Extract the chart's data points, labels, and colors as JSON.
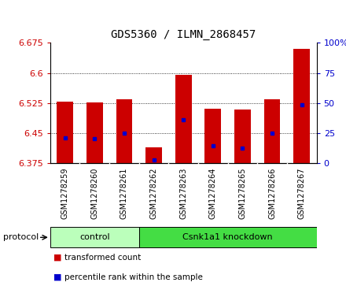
{
  "title": "GDS5360 / ILMN_2868457",
  "samples": [
    "GSM1278259",
    "GSM1278260",
    "GSM1278261",
    "GSM1278262",
    "GSM1278263",
    "GSM1278264",
    "GSM1278265",
    "GSM1278266",
    "GSM1278267"
  ],
  "bar_tops": [
    6.528,
    6.526,
    6.535,
    6.415,
    6.596,
    6.51,
    6.508,
    6.535,
    6.66
  ],
  "bar_bottoms": [
    6.375,
    6.375,
    6.375,
    6.375,
    6.375,
    6.375,
    6.375,
    6.375,
    6.375
  ],
  "blue_dots": [
    6.438,
    6.435,
    6.45,
    6.383,
    6.483,
    6.418,
    6.413,
    6.45,
    6.52
  ],
  "ylim": [
    6.375,
    6.675
  ],
  "yticks": [
    6.375,
    6.45,
    6.525,
    6.6,
    6.675
  ],
  "ytick_labels": [
    "6.375",
    "6.45",
    "6.525",
    "6.6",
    "6.675"
  ],
  "y2ticks": [
    0,
    25,
    50,
    75,
    100
  ],
  "y2tick_labels": [
    "0",
    "25",
    "50",
    "75",
    "100%"
  ],
  "bar_color": "#cc0000",
  "dot_color": "#0000cc",
  "protocol_groups": [
    {
      "label": "control",
      "start": 0,
      "end": 2,
      "color": "#bbffbb"
    },
    {
      "label": "Csnk1a1 knockdown",
      "start": 3,
      "end": 8,
      "color": "#44dd44"
    }
  ],
  "protocol_label": "protocol",
  "legend_items": [
    {
      "label": "transformed count",
      "color": "#cc0000"
    },
    {
      "label": "percentile rank within the sample",
      "color": "#0000cc"
    }
  ],
  "bar_width": 0.55,
  "ylabel_color": "#cc0000",
  "y2label_color": "#0000cc",
  "xtick_bg": "#cccccc",
  "xtick_sep_color": "#ffffff",
  "plot_bg": "#ffffff"
}
